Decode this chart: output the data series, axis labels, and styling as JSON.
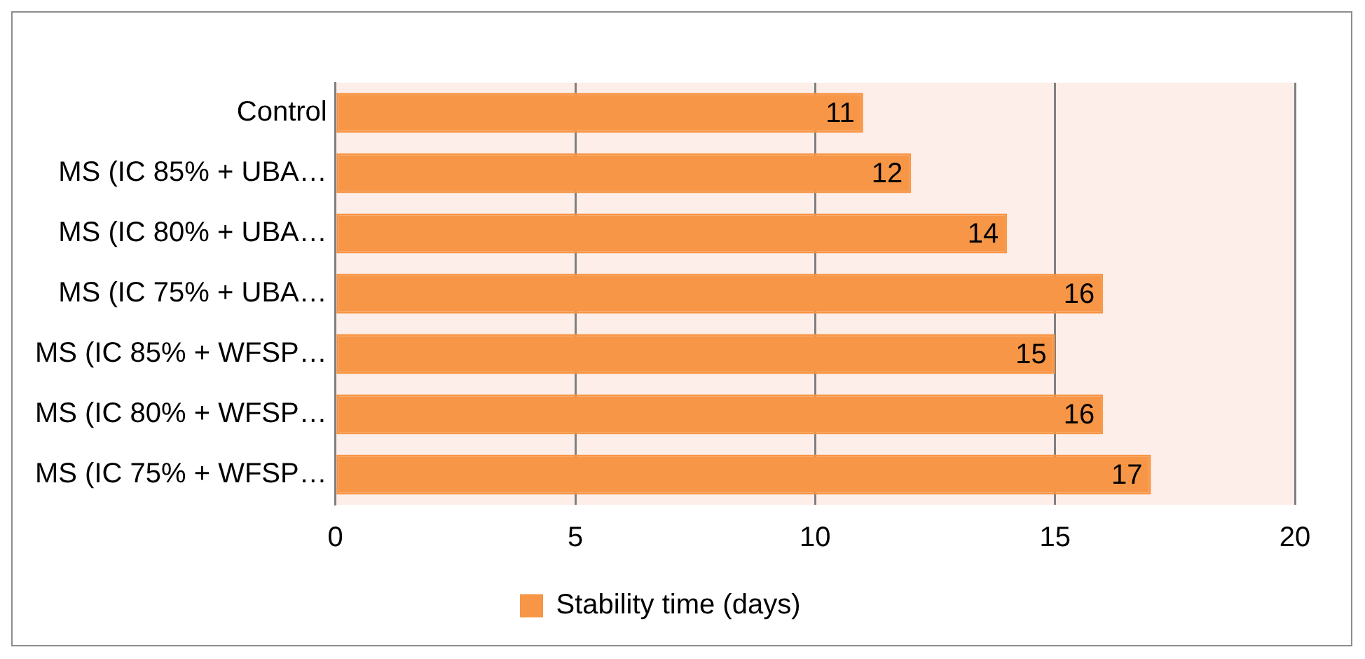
{
  "chart_data": {
    "type": "bar",
    "orientation": "horizontal",
    "categories": [
      "Control",
      "MS (IC 85% + UBA…",
      "MS (IC 80% + UBA…",
      "MS (IC 75% + UBA…",
      "MS (IC 85% + WFSP…",
      "MS (IC 80% + WFSP…",
      "MS (IC 75% + WFSP…"
    ],
    "series": [
      {
        "name": "Stability time (days)",
        "color": "#f79646",
        "values": [
          11,
          12,
          14,
          16,
          15,
          16,
          17
        ]
      }
    ],
    "xlim": [
      0,
      20
    ],
    "xticks": [
      0,
      5,
      10,
      15,
      20
    ],
    "grid": "x",
    "legend": "bottom",
    "data_labels": true
  }
}
